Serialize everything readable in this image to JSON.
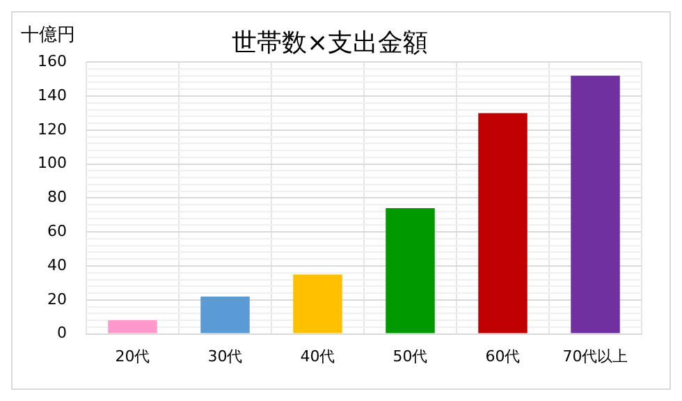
{
  "chart_data": {
    "type": "bar",
    "title": "世帯数×支出金額",
    "ylabel": "十億円",
    "categories": [
      "20代",
      "30代",
      "40代",
      "50代",
      "60代",
      "70代以上"
    ],
    "values": [
      8,
      22,
      35,
      74,
      130,
      152
    ],
    "colors": [
      "#ff99cc",
      "#5b9bd5",
      "#ffc000",
      "#009900",
      "#c00000",
      "#7030a0"
    ],
    "ylim": [
      0,
      160
    ],
    "yticks": [
      0,
      {
        "value": 4,
        "label": null
      },
      {
        "value": 8,
        "label": null
      },
      {
        "value": 12,
        "label": null
      },
      {
        "value": 16,
        "label": null
      },
      20,
      {
        "value": 24,
        "label": null
      },
      {
        "value": 28,
        "label": null
      },
      {
        "value": 32,
        "label": null
      },
      {
        "value": 36,
        "label": null
      },
      40,
      {
        "value": 44,
        "label": null
      },
      {
        "value": 48,
        "label": null
      },
      {
        "value": 52,
        "label": null
      },
      {
        "value": 56,
        "label": null
      },
      60,
      {
        "value": 64,
        "label": null
      },
      {
        "value": 68,
        "label": null
      },
      {
        "value": 72,
        "label": null
      },
      {
        "value": 76,
        "label": null
      },
      80,
      {
        "value": 84,
        "label": null
      },
      {
        "value": 88,
        "label": null
      },
      {
        "value": 92,
        "label": null
      },
      {
        "value": 96,
        "label": null
      },
      100,
      {
        "value": 104,
        "label": null
      },
      {
        "value": 108,
        "label": null
      },
      {
        "value": 112,
        "label": null
      },
      {
        "value": 116,
        "label": null
      },
      120,
      {
        "value": 124,
        "label": null
      },
      {
        "value": 128,
        "label": null
      },
      {
        "value": 132,
        "label": null
      },
      {
        "value": 136,
        "label": null
      },
      140,
      {
        "value": 144,
        "label": null
      },
      {
        "value": 148,
        "label": null
      },
      {
        "value": 152,
        "label": null
      },
      {
        "value": 156,
        "label": null
      },
      160
    ],
    "grid": true,
    "legend": false
  }
}
